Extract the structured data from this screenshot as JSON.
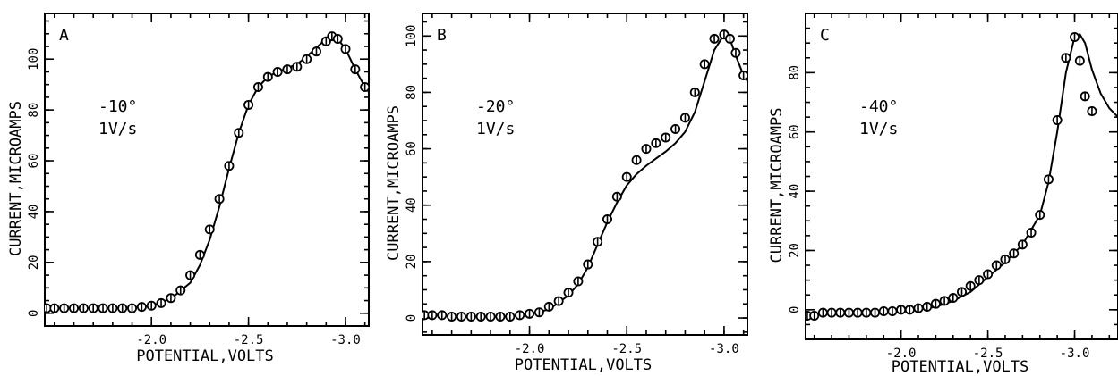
{
  "chart_data": [
    {
      "type": "line",
      "panel_label": "A",
      "annotation_temp": "-10°",
      "annotation_rate": "1V/s",
      "xlabel": "POTENTIAL,VOLTS",
      "ylabel": "CURRENT,MICROAMPS",
      "x_reversed": true,
      "xlim": [
        -1.45,
        -3.12
      ],
      "ylim": [
        -5,
        118
      ],
      "xticks": [
        -2.0,
        -2.5,
        -3.0
      ],
      "xtick_labels": [
        "-2.0",
        "-2.5",
        "-3.0"
      ],
      "yticks": [
        0,
        20,
        40,
        60,
        80,
        100
      ],
      "ytick_labels": [
        "0",
        "20",
        "40",
        "60",
        "80",
        "100"
      ],
      "series": [
        {
          "style": "line",
          "x": [
            -1.45,
            -1.6,
            -1.8,
            -1.95,
            -2.05,
            -2.12,
            -2.2,
            -2.25,
            -2.3,
            -2.35,
            -2.4,
            -2.45,
            -2.5,
            -2.55,
            -2.6,
            -2.65,
            -2.7,
            -2.75,
            -2.8,
            -2.85,
            -2.9,
            -2.93,
            -2.96,
            -3.0,
            -3.05,
            -3.1,
            -3.12
          ],
          "y": [
            2,
            2,
            2,
            2.5,
            4,
            7,
            12,
            19,
            29,
            42,
            57,
            71,
            82,
            89,
            93,
            95,
            96.5,
            98,
            101,
            104.5,
            108,
            109,
            108,
            104,
            96,
            89,
            87
          ]
        },
        {
          "style": "markers",
          "x": [
            -1.46,
            -1.5,
            -1.55,
            -1.6,
            -1.65,
            -1.7,
            -1.75,
            -1.8,
            -1.85,
            -1.9,
            -1.95,
            -2.0,
            -2.05,
            -2.1,
            -2.15,
            -2.2,
            -2.25,
            -2.3,
            -2.35,
            -2.4,
            -2.45,
            -2.5,
            -2.55,
            -2.6,
            -2.65,
            -2.7,
            -2.75,
            -2.8,
            -2.85,
            -2.9,
            -2.93,
            -2.96,
            -3.0,
            -3.05,
            -3.1
          ],
          "y": [
            2,
            2,
            2,
            2,
            2,
            2,
            2,
            2,
            2,
            2,
            2.5,
            3,
            4,
            6,
            9,
            15,
            23,
            33,
            45,
            58,
            71,
            82,
            89,
            93,
            95,
            96,
            97,
            100,
            103,
            107,
            109,
            108,
            104,
            96,
            89
          ]
        }
      ]
    },
    {
      "type": "line",
      "panel_label": "B",
      "annotation_temp": "-20°",
      "annotation_rate": "1V/s",
      "xlabel": "POTENTIAL,VOLTS",
      "ylabel": "CURRENT,MICROAMPS",
      "x_reversed": true,
      "xlim": [
        -1.45,
        -3.12
      ],
      "ylim": [
        -6,
        108
      ],
      "xticks": [
        -2.0,
        -2.5,
        -3.0
      ],
      "xtick_labels": [
        "-2.0",
        "-2.5",
        "-3.0"
      ],
      "yticks": [
        0,
        20,
        40,
        60,
        80,
        100
      ],
      "ytick_labels": [
        "0",
        "20",
        "40",
        "60",
        "80",
        "100"
      ],
      "series": [
        {
          "style": "line",
          "x": [
            -1.45,
            -1.7,
            -1.9,
            -2.0,
            -2.1,
            -2.2,
            -2.25,
            -2.3,
            -2.35,
            -2.4,
            -2.45,
            -2.5,
            -2.55,
            -2.6,
            -2.65,
            -2.7,
            -2.75,
            -2.8,
            -2.85,
            -2.9,
            -2.95,
            -3.0,
            -3.03,
            -3.06,
            -3.1,
            -3.12
          ],
          "y": [
            1,
            0.5,
            0.5,
            1.5,
            3,
            8,
            12,
            18,
            26,
            34,
            41,
            47,
            51,
            54,
            56.5,
            59,
            62,
            66,
            73,
            84,
            95,
            100.5,
            99,
            93,
            86,
            84
          ]
        },
        {
          "style": "markers",
          "x": [
            -1.46,
            -1.5,
            -1.55,
            -1.6,
            -1.65,
            -1.7,
            -1.75,
            -1.8,
            -1.85,
            -1.9,
            -1.95,
            -2.0,
            -2.05,
            -2.1,
            -2.15,
            -2.2,
            -2.25,
            -2.3,
            -2.35,
            -2.4,
            -2.45,
            -2.5,
            -2.55,
            -2.6,
            -2.65,
            -2.7,
            -2.75,
            -2.8,
            -2.85,
            -2.9,
            -2.95,
            -3.0,
            -3.03,
            -3.06,
            -3.1
          ],
          "y": [
            1,
            1,
            1,
            0.5,
            0.5,
            0.5,
            0.5,
            0.5,
            0.5,
            0.5,
            1,
            1.5,
            2,
            4,
            6,
            9,
            13,
            19,
            27,
            35,
            43,
            50,
            56,
            60,
            62,
            64,
            67,
            71,
            80,
            90,
            99,
            100.5,
            99,
            94,
            86
          ]
        }
      ]
    },
    {
      "type": "line",
      "panel_label": "C",
      "annotation_temp": "-40°",
      "annotation_rate": "1V/s",
      "xlabel": "POTENTIAL,VOLTS",
      "ylabel": "CURRENT,MICROAMPS",
      "x_reversed": true,
      "xlim": [
        -1.45,
        -3.25
      ],
      "ylim": [
        -10,
        100
      ],
      "xticks": [
        -2.0,
        -2.5,
        -3.0
      ],
      "xtick_labels": [
        "-2.0",
        "-2.5",
        "-3.0"
      ],
      "yticks": [
        0,
        20,
        40,
        60,
        80
      ],
      "ytick_labels": [
        "0",
        "20",
        "40",
        "60",
        "80"
      ],
      "series": [
        {
          "style": "line",
          "x": [
            -1.45,
            -1.6,
            -1.8,
            -2.0,
            -2.1,
            -2.2,
            -2.3,
            -2.4,
            -2.5,
            -2.6,
            -2.7,
            -2.8,
            -2.85,
            -2.9,
            -2.95,
            -3.0,
            -3.03,
            -3.06,
            -3.1,
            -3.15,
            -3.2,
            -3.25
          ],
          "y": [
            -2,
            -1,
            -1,
            -0.5,
            0,
            1,
            3,
            6,
            11,
            16,
            22,
            32,
            43,
            60,
            80,
            92,
            93,
            90,
            81,
            73,
            68,
            65
          ]
        },
        {
          "style": "markers",
          "x": [
            -1.46,
            -1.5,
            -1.55,
            -1.6,
            -1.65,
            -1.7,
            -1.75,
            -1.8,
            -1.85,
            -1.9,
            -1.95,
            -2.0,
            -2.05,
            -2.1,
            -2.15,
            -2.2,
            -2.25,
            -2.3,
            -2.35,
            -2.4,
            -2.45,
            -2.5,
            -2.55,
            -2.6,
            -2.65,
            -2.7,
            -2.75,
            -2.8,
            -2.85,
            -2.9,
            -2.95,
            -3.0,
            -3.03,
            -3.06,
            -3.1
          ],
          "y": [
            -2,
            -2,
            -1,
            -1,
            -1,
            -1,
            -1,
            -1,
            -1,
            -0.5,
            -0.5,
            0,
            0,
            0.5,
            1,
            2,
            3,
            4,
            6,
            8,
            10,
            12,
            15,
            17,
            19,
            22,
            26,
            32,
            44,
            64,
            85,
            92,
            84,
            72,
            67
          ]
        }
      ]
    }
  ]
}
